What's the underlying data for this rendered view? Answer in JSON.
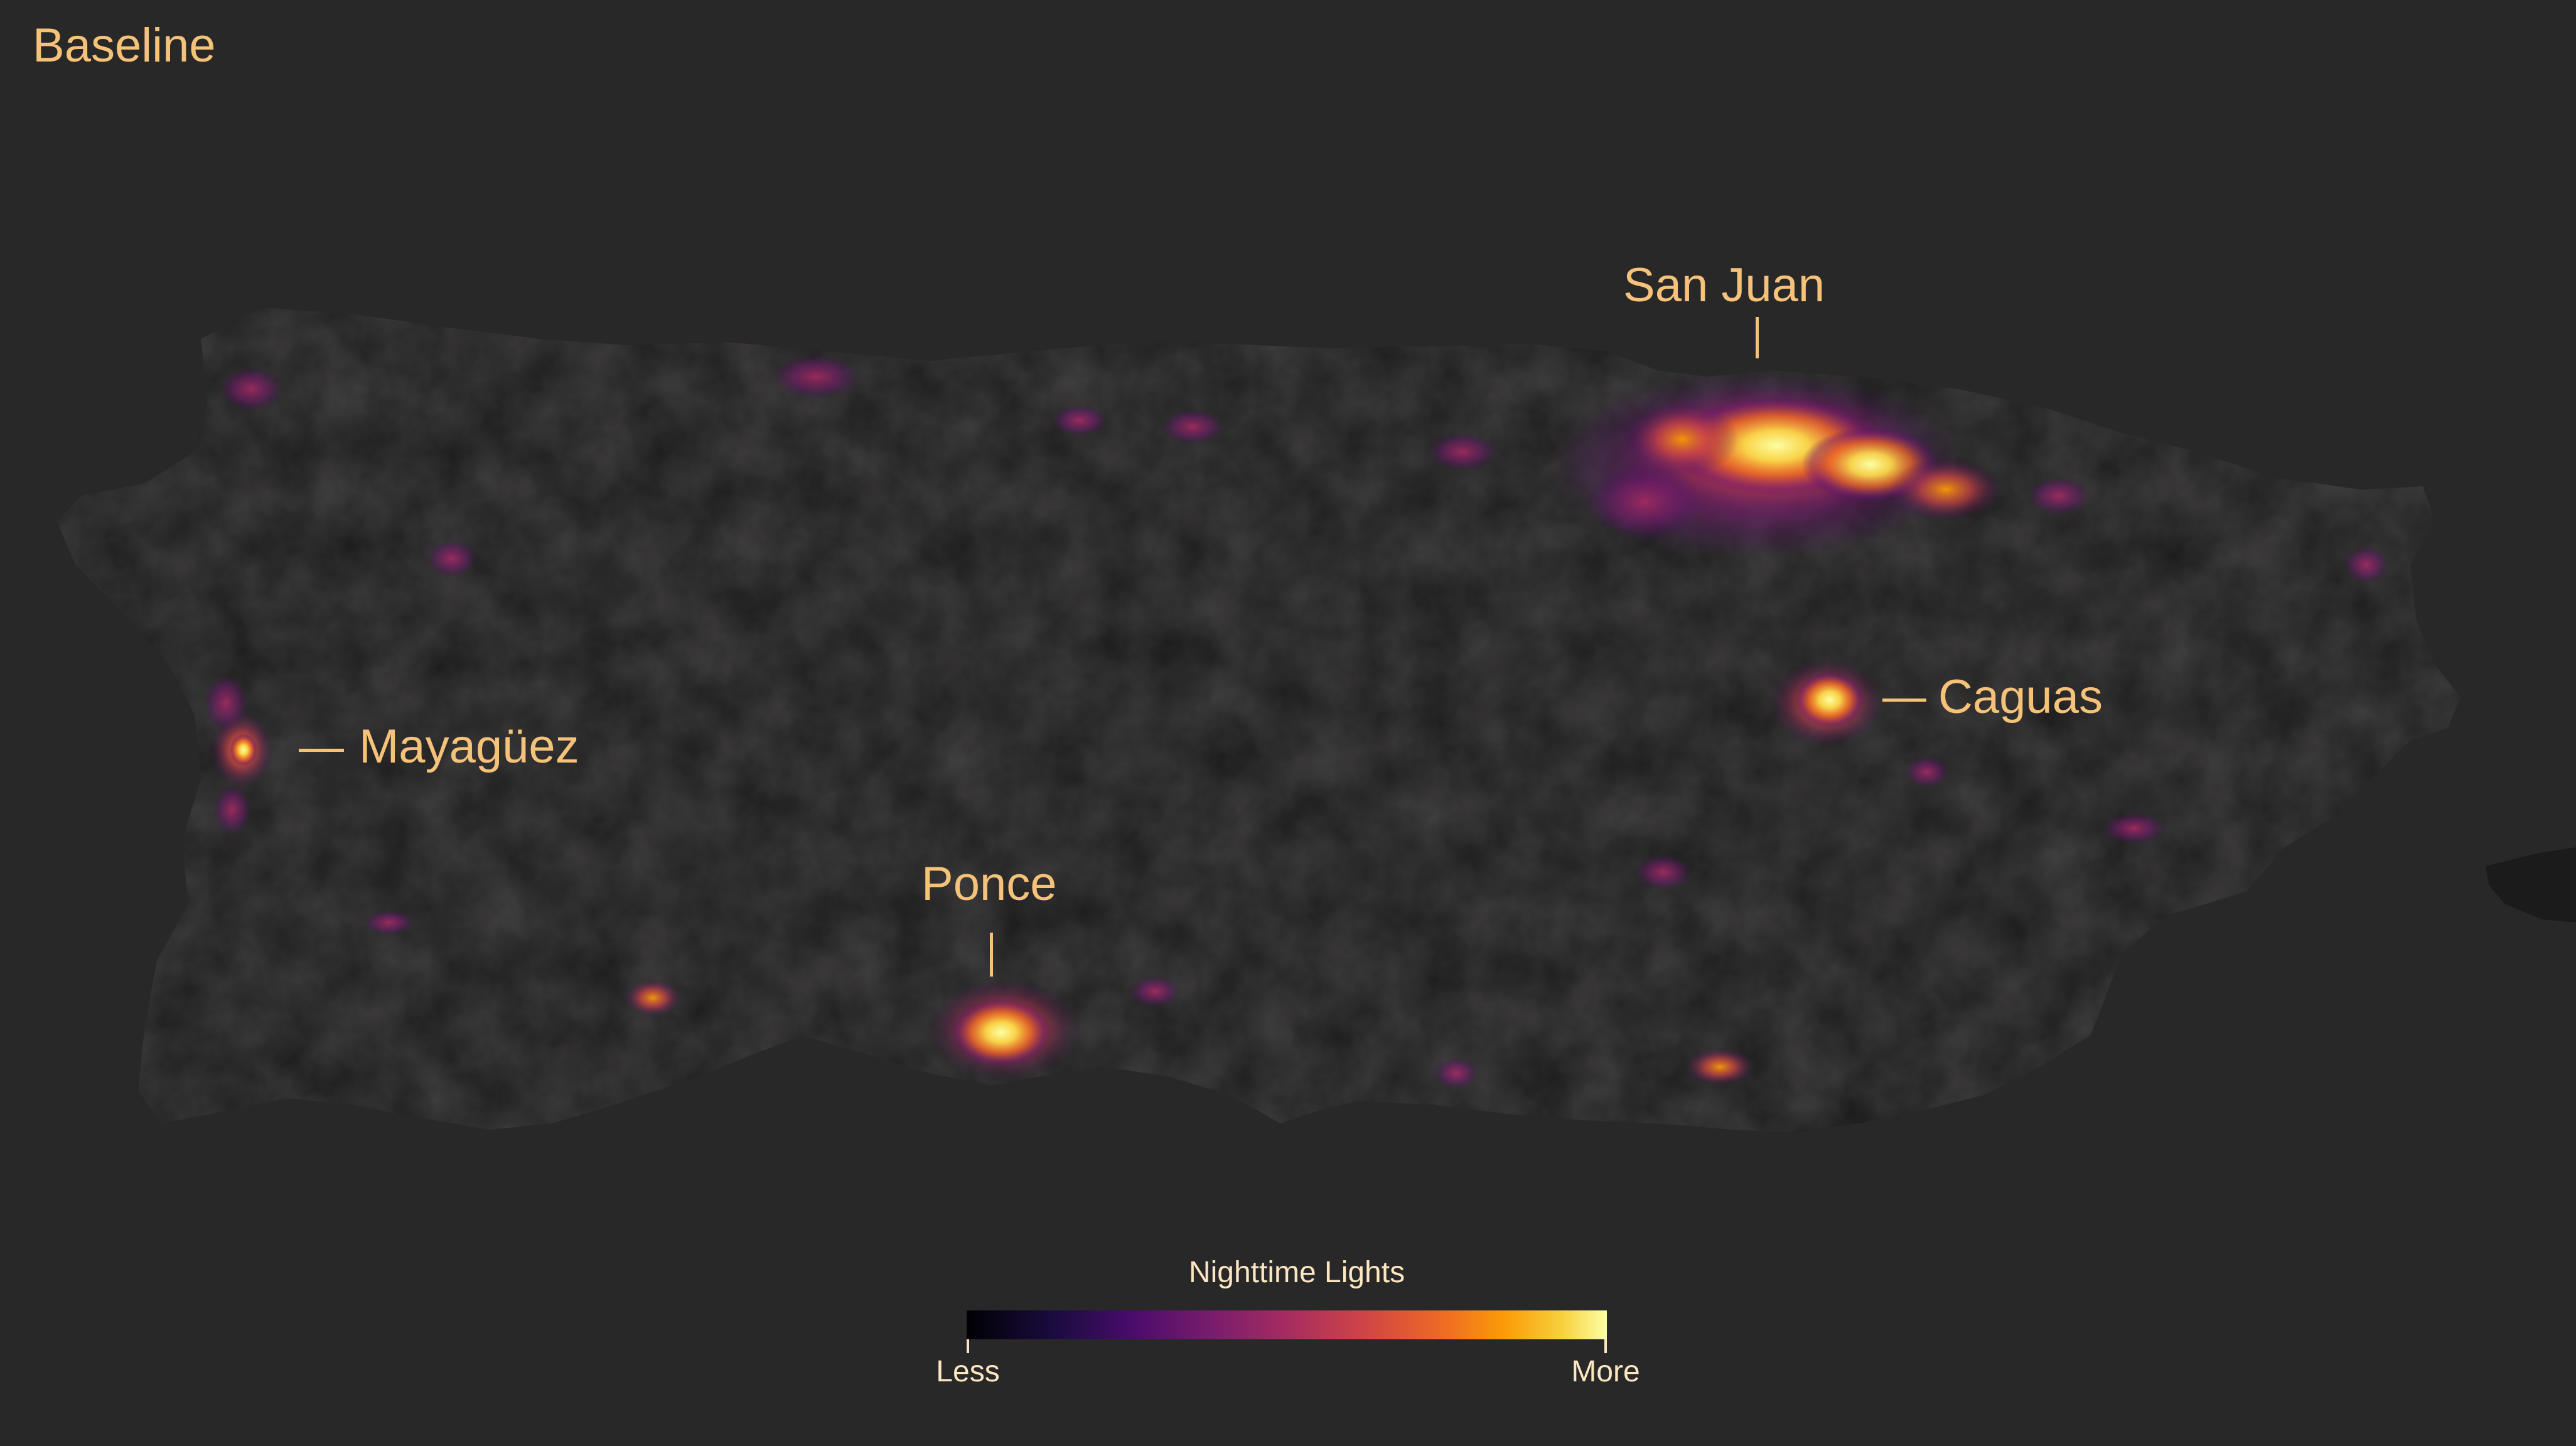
{
  "panel": {
    "title": "Baseline"
  },
  "map": {
    "region": "Puerto Rico",
    "background_color": "#282828",
    "land_color": "#1c1b1b",
    "label_color": "#f5c27a",
    "cities": [
      {
        "name": "San Juan",
        "brightness": "high"
      },
      {
        "name": "Caguas",
        "brightness": "high"
      },
      {
        "name": "Mayagüez",
        "brightness": "medium"
      },
      {
        "name": "Ponce",
        "brightness": "high"
      }
    ]
  },
  "legend": {
    "title": "Nighttime Lights",
    "low_label": "Less",
    "high_label": "More",
    "colormap": "inferno",
    "colors": [
      "#000004",
      "#1b0c41",
      "#4a0c6b",
      "#781c6d",
      "#a52c60",
      "#cf4446",
      "#ed6925",
      "#fb9b06",
      "#f7d13d",
      "#fcffa4"
    ]
  }
}
